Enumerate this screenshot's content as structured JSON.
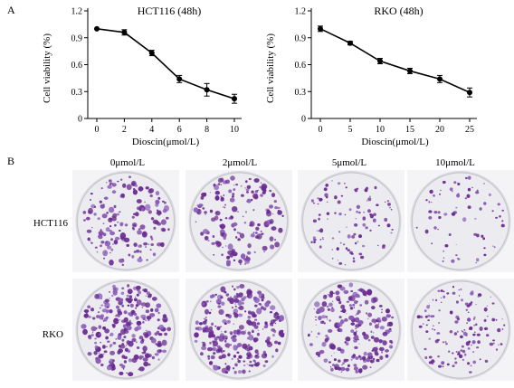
{
  "panel_labels": {
    "a": "A",
    "b": "B"
  },
  "chart_data": [
    {
      "type": "line",
      "title": "HCT116 (48h)",
      "xlabel": "Dioscin(μmol/L)",
      "ylabel": "Cell viability (%)",
      "x": [
        0,
        2,
        4,
        6,
        8,
        10
      ],
      "y": [
        1.0,
        0.96,
        0.73,
        0.44,
        0.32,
        0.22
      ],
      "err": [
        0.0,
        0.03,
        0.03,
        0.04,
        0.07,
        0.05
      ],
      "xlim": [
        0,
        10
      ],
      "ylim": [
        0,
        1.2
      ],
      "xticks": [
        "0",
        "2",
        "4",
        "6",
        "8",
        "10"
      ],
      "yticks": [
        "0",
        "0.3",
        "0.6",
        "0.9",
        "1.2"
      ],
      "grid": false
    },
    {
      "type": "line",
      "title": "RKO (48h)",
      "xlabel": "Dioscin(μmol/L)",
      "ylabel": "Cell viability (%)",
      "x": [
        0,
        5,
        10,
        15,
        20,
        25
      ],
      "y": [
        1.0,
        0.84,
        0.64,
        0.53,
        0.44,
        0.29
      ],
      "err": [
        0.03,
        0.02,
        0.03,
        0.03,
        0.04,
        0.05
      ],
      "xlim": [
        0,
        25
      ],
      "ylim": [
        0,
        1.2
      ],
      "xticks": [
        "0",
        "5",
        "10",
        "15",
        "20",
        "25"
      ],
      "yticks": [
        "0",
        "0.3",
        "0.6",
        "0.9",
        "1.2"
      ],
      "grid": false
    }
  ],
  "colony": {
    "columns": [
      "0μmol/L",
      "2μmol/L",
      "5μmol/L",
      "10μmol/L"
    ],
    "rows": [
      "HCT116",
      "RKO"
    ],
    "density": [
      [
        0.5,
        0.5,
        0.25,
        0.12
      ],
      [
        0.85,
        0.9,
        0.7,
        0.4
      ]
    ],
    "colors": {
      "colony": "#6a2c91",
      "colony_light": "#8a5bb8",
      "plate": "#ececf0"
    }
  }
}
